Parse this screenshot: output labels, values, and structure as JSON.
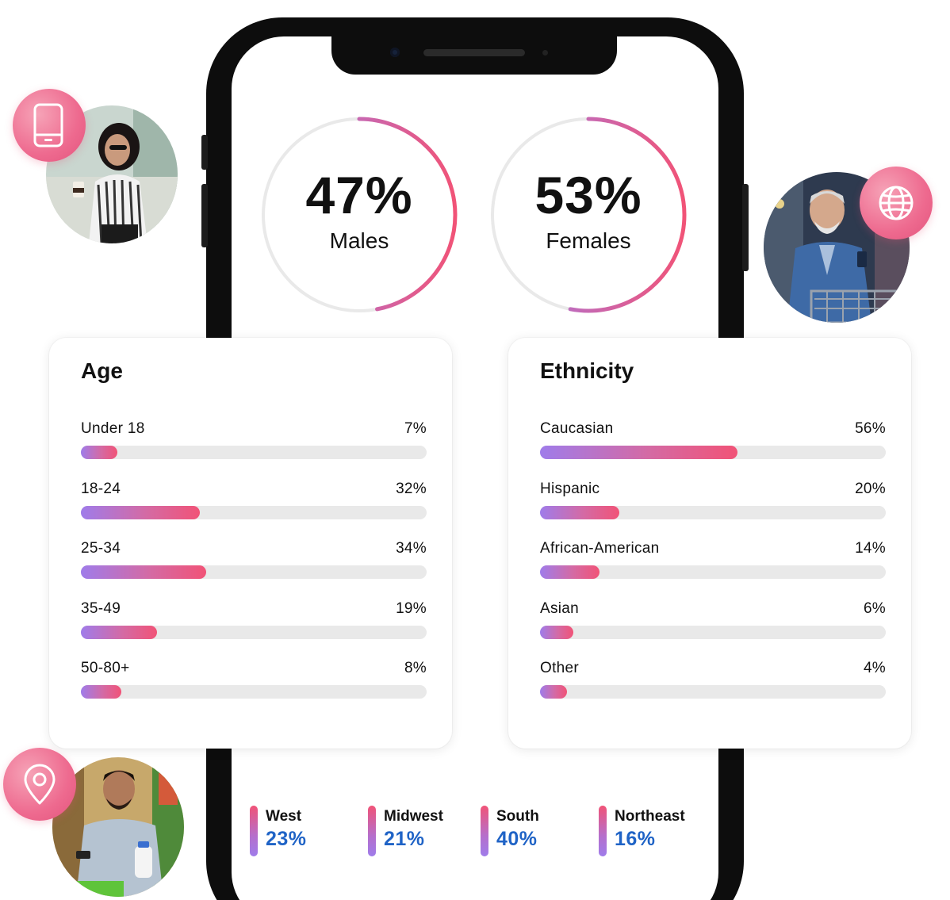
{
  "colors": {
    "gradient_start": "#9f7cea",
    "gradient_end": "#f15377",
    "track": "#e9e9e9",
    "region_value": "#1f63c6",
    "badge": "#ee6a8f"
  },
  "gender": {
    "males": {
      "value": "47%",
      "label": "Males",
      "percent": 47
    },
    "females": {
      "value": "53%",
      "label": "Females",
      "percent": 53
    }
  },
  "age": {
    "title": "Age",
    "items": [
      {
        "label": "Under 18",
        "value": "7%",
        "percent": 7
      },
      {
        "label": "18-24",
        "value": "32%",
        "percent": 32
      },
      {
        "label": "25-34",
        "value": "34%",
        "percent": 34
      },
      {
        "label": "35-49",
        "value": "19%",
        "percent": 19
      },
      {
        "label": "50-80+",
        "value": "8%",
        "percent": 8
      }
    ]
  },
  "ethnicity": {
    "title": "Ethnicity",
    "items": [
      {
        "label": "Caucasian",
        "value": "56%",
        "percent": 56
      },
      {
        "label": "Hispanic",
        "value": "20%",
        "percent": 20
      },
      {
        "label": "African-American",
        "value": "14%",
        "percent": 14
      },
      {
        "label": "Asian",
        "value": "6%",
        "percent": 6
      },
      {
        "label": "Other",
        "value": "4%",
        "percent": 4
      }
    ]
  },
  "regions": [
    {
      "name": "West",
      "value": "23%"
    },
    {
      "name": "Midwest",
      "value": "21%"
    },
    {
      "name": "South",
      "value": "40%"
    },
    {
      "name": "Northeast",
      "value": "16%"
    }
  ],
  "icons": {
    "top_left_badge": "smartphone-icon",
    "right_badge": "globe-icon",
    "bottom_left_badge": "location-pin-icon"
  }
}
